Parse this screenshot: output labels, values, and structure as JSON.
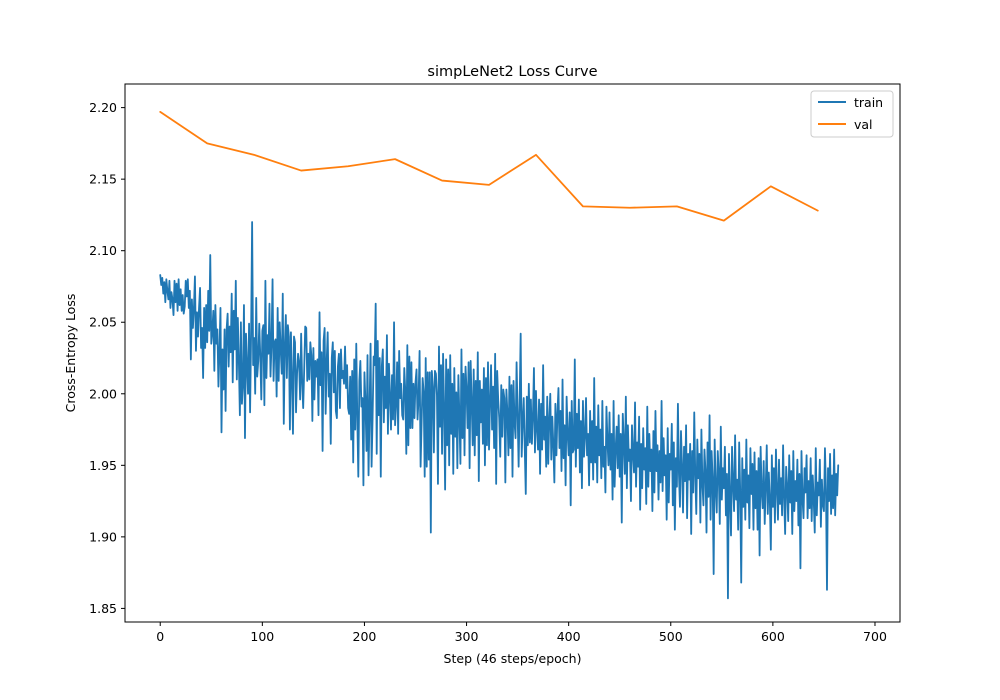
{
  "chart_data": {
    "type": "line",
    "title": "simpLeNet2 Loss Curve",
    "xlabel": "Step (46 steps/epoch)",
    "ylabel": "Cross-Entropy Loss",
    "xlim": [
      -34.5,
      724.5
    ],
    "ylim": [
      1.8405,
      2.2165
    ],
    "xticks": [
      0,
      100,
      200,
      300,
      400,
      500,
      600,
      700
    ],
    "yticks": [
      1.85,
      1.9,
      1.95,
      2.0,
      2.05,
      2.1,
      2.15,
      2.2
    ],
    "xtick_labels": [
      "0",
      "100",
      "200",
      "300",
      "400",
      "500",
      "600",
      "700"
    ],
    "ytick_labels": [
      "1.85",
      "1.90",
      "1.95",
      "2.00",
      "2.05",
      "2.10",
      "2.15",
      "2.20"
    ],
    "grid": false,
    "legend": {
      "placement": "top-right",
      "entries": [
        "train",
        "val"
      ]
    },
    "series": [
      {
        "name": "train",
        "color": "#1f77b4",
        "x_start": 0,
        "x_step": 1,
        "values": [
          2.083,
          2.076,
          2.081,
          2.07,
          2.078,
          2.064,
          2.08,
          2.072,
          2.066,
          2.079,
          2.06,
          2.071,
          2.066,
          2.055,
          2.079,
          2.064,
          2.077,
          2.058,
          2.08,
          2.062,
          2.073,
          2.058,
          2.069,
          2.056,
          2.061,
          2.079,
          2.068,
          2.08,
          2.06,
          2.072,
          2.024,
          2.066,
          2.046,
          2.06,
          2.082,
          2.03,
          2.057,
          2.04,
          2.06,
          2.074,
          2.032,
          2.046,
          2.011,
          2.06,
          2.032,
          2.062,
          2.036,
          2.072,
          2.044,
          2.097,
          2.035,
          2.043,
          2.058,
          2.016,
          2.062,
          2.035,
          2.045,
          2.005,
          2.03,
          2.06,
          1.973,
          2.031,
          2.003,
          2.045,
          1.988,
          2.045,
          2.056,
          2.019,
          2.047,
          2.029,
          2.07,
          2.008,
          2.058,
          2.031,
          2.079,
          2.01,
          2.053,
          2.023,
          1.985,
          2.05,
          1.993,
          2.006,
          2.062,
          1.969,
          2.042,
          2.019,
          2.0,
          2.049,
          1.987,
          2.042,
          2.12,
          2.02,
          2.039,
          2.0,
          2.067,
          2.012,
          2.023,
          2.049,
          2.026,
          1.996,
          2.044,
          2.048,
          1.992,
          2.079,
          2.011,
          2.041,
          2.028,
          2.063,
          2.012,
          2.035,
          2.08,
          2.009,
          2.036,
          2.038,
          1.998,
          2.06,
          2.009,
          2.05,
          2.031,
          2.014,
          2.07,
          1.979,
          2.033,
          2.055,
          2.011,
          2.048,
          2.04,
          1.975,
          2.043,
          2.011,
          1.972,
          2.04,
          2.036,
          1.987,
          2.014,
          2.028,
          2.022,
          1.996,
          2.042,
          2.008,
          1.99,
          2.017,
          2.047,
          2.046,
          2.009,
          2.028,
          2.01,
          2.036,
          2.027,
          1.981,
          2.032,
          1.996,
          2.023,
          2.012,
          2.024,
          1.985,
          2.057,
          2.006,
          2.029,
          1.96,
          2.037,
          2.046,
          1.986,
          2.022,
          2.043,
          1.998,
          2.014,
          1.965,
          2.025,
          2.036,
          2.001,
          2.03,
          1.988,
          1.983,
          2.019,
          2.028,
          1.99,
          2.031,
          2.011,
          2.016,
          2.007,
          2.033,
          2.004,
          2.02,
          1.99,
          1.986,
          2.012,
          1.968,
          2.016,
          1.952,
          2.024,
          1.975,
          2.035,
          1.983,
          1.942,
          2.009,
          2.023,
          1.991,
          1.997,
          1.936,
          2.015,
          1.994,
          1.96,
          2.027,
          1.943,
          1.988,
          2.035,
          1.949,
          1.984,
          2.026,
          2.02,
          2.063,
          1.958,
          2.037,
          1.985,
          2.025,
          1.942,
          2.019,
          2.031,
          1.98,
          2.012,
          1.99,
          2.041,
          1.972,
          2.021,
          1.999,
          1.975,
          2.013,
          1.982,
          2.05,
          1.978,
          1.993,
          2.022,
          1.972,
          2.03,
          1.997,
          2.007,
          1.985,
          1.982,
          2.018,
          2.002,
          1.958,
          2.034,
          1.964,
          2.026,
          1.976,
          2.022,
          1.976,
          2.007,
          1.983,
          2.008,
          2.017,
          1.982,
          1.996,
          2.03,
          1.949,
          1.98,
          2.011,
          2.001,
          1.942,
          2.025,
          1.949,
          2.015,
          1.954,
          2.015,
          1.903,
          2.016,
          2.005,
          1.959,
          2.016,
          2.014,
          1.999,
          1.937,
          2.033,
          1.977,
          2.02,
          1.958,
          2.028,
          1.99,
          1.933,
          2.024,
          1.964,
          2.017,
          1.95,
          2.027,
          1.972,
          2.007,
          1.944,
          2.018,
          1.97,
          2.001,
          1.948,
          2.013,
          1.984,
          1.951,
          2.031,
          1.969,
          2.014,
          1.957,
          2.019,
          2.003,
          1.976,
          2.022,
          1.948,
          2.023,
          1.994,
          1.964,
          2.017,
          1.957,
          2.009,
          1.971,
          2.029,
          1.939,
          2.009,
          1.98,
          2.003,
          1.965,
          2.018,
          1.95,
          2.011,
          1.964,
          2.022,
          1.961,
          1.995,
          2.02,
          1.975,
          2.005,
          1.962,
          2.028,
          1.937,
          2.016,
          1.996,
          1.983,
          1.956,
          2.006,
          1.97,
          2.003,
          1.997,
          1.938,
          2.003,
          1.987,
          1.957,
          2.012,
          1.962,
          2.006,
          1.942,
          2.009,
          1.98,
          1.969,
          2.022,
          1.987,
          1.949,
          1.995,
          2.042,
          1.956,
          1.981,
          1.997,
          1.962,
          1.93,
          1.998,
          1.964,
          2.007,
          1.966,
          1.996,
          1.965,
          1.984,
          2.018,
          1.959,
          2.002,
          1.975,
          1.961,
          1.996,
          1.944,
          1.993,
          1.961,
          2.02,
          1.968,
          1.984,
          1.949,
          1.998,
          1.951,
          1.982,
          2.0,
          1.954,
          1.984,
          1.964,
          1.938,
          1.993,
          1.957,
          1.986,
          2.004,
          1.962,
          1.988,
          1.946,
          2.01,
          1.955,
          1.978,
          1.936,
          1.998,
          1.972,
          1.957,
          1.987,
          1.922,
          1.995,
          1.959,
          1.961,
          2.024,
          1.949,
          1.986,
          1.962,
          1.996,
          1.945,
          1.981,
          1.934,
          1.995,
          1.956,
          1.97,
          1.997,
          1.957,
          1.972,
          1.936,
          1.988,
          1.952,
          1.981,
          1.94,
          2.011,
          1.952,
          1.977,
          1.938,
          1.992,
          1.957,
          1.975,
          1.941,
          1.995,
          1.949,
          1.963,
          1.931,
          1.991,
          1.967,
          1.95,
          1.987,
          1.947,
          1.972,
          1.926,
          1.995,
          1.935,
          1.961,
          1.977,
          1.948,
          1.985,
          1.942,
          1.972,
          1.91,
          1.986,
          1.966,
          1.944,
          1.998,
          1.934,
          1.978,
          1.953,
          1.961,
          1.925,
          1.978,
          1.958,
          1.945,
          1.994,
          1.935,
          1.966,
          1.949,
          1.984,
          1.919,
          1.965,
          1.934,
          1.976,
          1.947,
          1.962,
          1.923,
          1.991,
          1.935,
          1.972,
          1.946,
          1.961,
          1.918,
          1.974,
          1.931,
          1.988,
          1.946,
          1.964,
          1.926,
          1.96,
          1.938,
          1.995,
          1.932,
          1.969,
          1.943,
          1.957,
          1.912,
          1.976,
          1.924,
          1.958,
          1.947,
          1.979,
          1.922,
          1.966,
          1.905,
          1.955,
          1.935,
          1.993,
          1.944,
          1.921,
          1.974,
          1.95,
          1.917,
          1.963,
          1.939,
          1.978,
          1.913,
          1.958,
          1.94,
          1.965,
          1.902,
          1.96,
          1.931,
          1.987,
          1.943,
          1.916,
          1.968,
          1.941,
          1.958,
          1.91,
          1.975,
          1.937,
          1.922,
          1.961,
          1.946,
          1.903,
          1.966,
          1.928,
          1.985,
          1.912,
          1.96,
          1.941,
          1.874,
          1.968,
          1.934,
          1.917,
          1.96,
          1.945,
          1.909,
          1.977,
          1.926,
          1.948,
          1.934,
          1.963,
          1.915,
          1.944,
          1.857,
          1.958,
          1.929,
          1.901,
          1.963,
          1.937,
          1.918,
          1.971,
          1.926,
          1.94,
          1.905,
          1.966,
          1.932,
          1.868,
          1.955,
          1.921,
          1.947,
          1.912,
          1.968,
          1.924,
          1.943,
          1.906,
          1.962,
          1.93,
          1.951,
          1.905,
          1.959,
          1.92,
          1.946,
          1.905,
          1.955,
          1.887,
          1.963,
          1.932,
          1.92,
          1.953,
          1.909,
          1.935,
          1.964,
          1.916,
          1.945,
          1.926,
          1.891,
          1.957,
          1.921,
          1.948,
          1.91,
          1.961,
          1.933,
          1.912,
          1.954,
          1.923,
          1.941,
          1.915,
          1.964,
          1.928,
          1.902,
          1.949,
          1.935,
          1.911,
          1.957,
          1.924,
          1.946,
          1.902,
          1.96,
          1.918,
          1.939,
          1.925,
          1.954,
          1.908,
          1.944,
          1.878,
          1.96,
          1.927,
          1.913,
          1.948,
          1.931,
          1.957,
          1.913,
          1.939,
          1.92,
          1.955,
          1.911,
          1.943,
          1.926,
          1.903,
          1.962,
          1.915,
          1.938,
          1.929,
          1.954,
          1.907,
          1.94,
          1.922,
          1.918,
          1.962,
          1.933,
          1.863,
          1.948,
          1.925,
          1.958,
          1.916,
          1.943,
          1.92,
          1.961,
          1.915,
          1.944,
          1.929,
          1.95
        ]
      },
      {
        "name": "val",
        "color": "#ff7f0e",
        "x": [
          0,
          46,
          92,
          138,
          184,
          230,
          276,
          322,
          368,
          414,
          460,
          506,
          552,
          598,
          644
        ],
        "values": [
          2.197,
          2.175,
          2.167,
          2.156,
          2.159,
          2.164,
          2.149,
          2.146,
          2.167,
          2.131,
          2.13,
          2.131,
          2.121,
          2.145,
          2.128
        ]
      }
    ]
  }
}
